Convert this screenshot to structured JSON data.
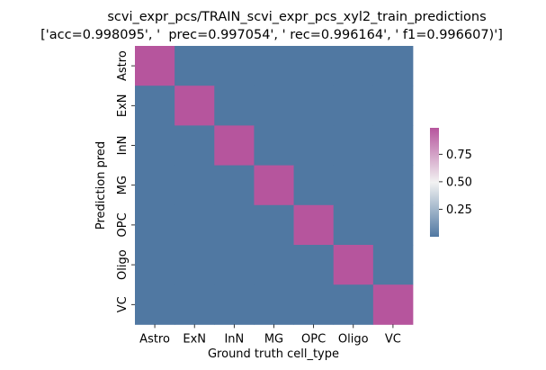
{
  "chart_data": {
    "type": "heatmap",
    "title": "scvi_expr_pcs/TRAIN_scvi_expr_pcs_xyl2_train_predictions",
    "subtitle": "['acc=0.998095', '  prec=0.997054', ' rec=0.996164', ' f1=0.996607)']",
    "xlabel": "Ground truth cell_type",
    "ylabel": "Prediction pred",
    "x_categories": [
      "Astro",
      "ExN",
      "InN",
      "MG",
      "OPC",
      "Oligo",
      "VC"
    ],
    "y_categories": [
      "Astro",
      "ExN",
      "InN",
      "MG",
      "OPC",
      "Oligo",
      "VC"
    ],
    "values": [
      [
        0.99,
        0.0,
        0.0,
        0.0,
        0.0,
        0.0,
        0.0
      ],
      [
        0.0,
        0.99,
        0.0,
        0.0,
        0.0,
        0.0,
        0.0
      ],
      [
        0.0,
        0.0,
        0.99,
        0.0,
        0.0,
        0.0,
        0.0
      ],
      [
        0.0,
        0.0,
        0.0,
        0.99,
        0.0,
        0.0,
        0.0
      ],
      [
        0.0,
        0.0,
        0.0,
        0.0,
        0.99,
        0.0,
        0.0
      ],
      [
        0.0,
        0.0,
        0.0,
        0.0,
        0.0,
        0.99,
        0.0
      ],
      [
        0.0,
        0.0,
        0.0,
        0.0,
        0.0,
        0.0,
        0.99
      ]
    ],
    "colorbar": {
      "ticks": [
        0.25,
        0.5,
        0.75
      ],
      "tick_labels": [
        "0.25",
        "0.50",
        "0.75"
      ],
      "range": [
        0.0,
        0.99
      ]
    },
    "colormap": {
      "low": "#5078a2",
      "mid": "#f2f2f2",
      "high": "#b6559d"
    },
    "grid": false,
    "legend": "colorbar right"
  }
}
